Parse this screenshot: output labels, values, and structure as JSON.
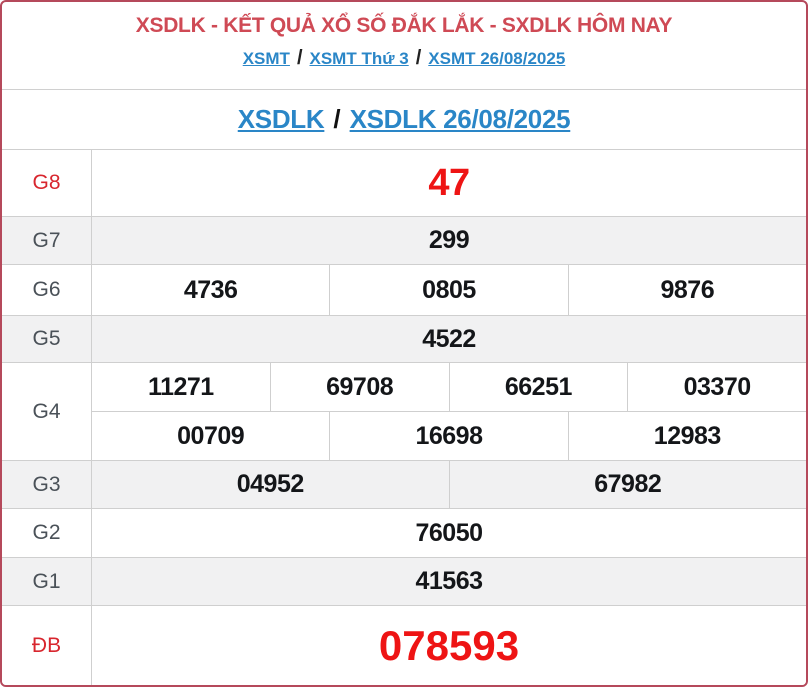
{
  "colors": {
    "accent_red": "#ee1414",
    "title_red": "#cf4a55",
    "border_red": "#b5495b",
    "link_blue": "#2a86c7",
    "row_alt_bg": "#f1f1f2",
    "grid_gray": "#cfcfcf"
  },
  "header": {
    "title": "XSDLK - KẾT QUẢ XỔ SỐ ĐẮK LẮK - SXDLK HÔM NAY",
    "separator": "/",
    "breadcrumb": [
      {
        "label": "XSMT"
      },
      {
        "label": "XSMT Thứ 3"
      },
      {
        "label": "XSMT 26/08/2025"
      }
    ]
  },
  "subheader": {
    "separator": "/",
    "links": [
      {
        "label": "XSDLK"
      },
      {
        "label": "XSDLK 26/08/2025"
      }
    ]
  },
  "results_table": {
    "rows": [
      {
        "label": "G8",
        "highlight": true,
        "cells": [
          [
            "47"
          ]
        ]
      },
      {
        "label": "G7",
        "highlight": false,
        "cells": [
          [
            "299"
          ]
        ]
      },
      {
        "label": "G6",
        "highlight": false,
        "cells": [
          [
            "4736",
            "0805",
            "9876"
          ]
        ]
      },
      {
        "label": "G5",
        "highlight": false,
        "cells": [
          [
            "4522"
          ]
        ]
      },
      {
        "label": "G4",
        "highlight": false,
        "cells": [
          [
            "11271",
            "69708",
            "66251",
            "03370"
          ],
          [
            "00709",
            "16698",
            "12983"
          ]
        ]
      },
      {
        "label": "G3",
        "highlight": false,
        "cells": [
          [
            "04952",
            "67982"
          ]
        ]
      },
      {
        "label": "G2",
        "highlight": false,
        "cells": [
          [
            "76050"
          ]
        ]
      },
      {
        "label": "G1",
        "highlight": false,
        "cells": [
          [
            "41563"
          ]
        ]
      },
      {
        "label": "ĐB",
        "highlight": true,
        "cells": [
          [
            "078593"
          ]
        ]
      }
    ]
  }
}
